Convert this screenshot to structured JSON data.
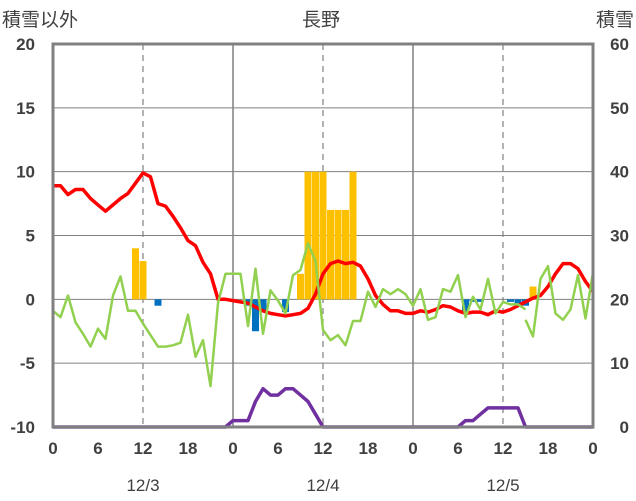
{
  "chart_data": {
    "type": "line",
    "title": "長野",
    "left_axis_label": "積雪以外",
    "right_axis_label": "積雪",
    "left_ylim": [
      -10,
      20
    ],
    "left_ticks": [
      "20",
      "15",
      "10",
      "5",
      "0",
      "-5",
      "-10"
    ],
    "right_ylim": [
      0,
      60
    ],
    "right_ticks": [
      "60",
      "50",
      "40",
      "30",
      "20",
      "10",
      "0"
    ],
    "xlim": [
      0,
      72
    ],
    "x_tick_values": [
      0,
      6,
      12,
      18,
      24,
      30,
      36,
      42,
      48,
      54,
      60,
      66,
      72
    ],
    "x_tick_labels": [
      "0",
      "6",
      "12",
      "18",
      "0",
      "6",
      "12",
      "18",
      "0",
      "6",
      "12",
      "18",
      "0"
    ],
    "day_labels": [
      {
        "x": 12,
        "text": "12/3"
      },
      {
        "x": 36,
        "text": "12/4"
      },
      {
        "x": 60,
        "text": "12/5"
      }
    ],
    "colors": {
      "temperature": "#ff0000",
      "wind": "#92d050",
      "snow_depth": "#7030a0",
      "snowfall": "#ffc000",
      "snow_decrease": "#0070c0",
      "grid": "#808080",
      "frame": "#808080"
    },
    "series": [
      {
        "key": "temperature",
        "axis": "left",
        "x": [
          0,
          1,
          2,
          3,
          4,
          5,
          6,
          7,
          8,
          9,
          10,
          11,
          12,
          13,
          14,
          15,
          16,
          17,
          18,
          19,
          20,
          21,
          22,
          23,
          24,
          25,
          26,
          27,
          28,
          29,
          30,
          31,
          32,
          33,
          34,
          35,
          36,
          37,
          38,
          39,
          40,
          41,
          42,
          43,
          44,
          45,
          46,
          47,
          48,
          49,
          50,
          51,
          52,
          53,
          54,
          55,
          56,
          57,
          58,
          59,
          60,
          61,
          62,
          63,
          64,
          65,
          66,
          67,
          68,
          69,
          70,
          71,
          72
        ],
        "values": [
          8.9,
          8.9,
          8.2,
          8.6,
          8.6,
          7.9,
          7.4,
          6.9,
          7.4,
          7.9,
          8.3,
          9.1,
          9.9,
          9.6,
          7.5,
          7.3,
          6.5,
          5.6,
          4.6,
          4.2,
          2.9,
          2.0,
          0.0,
          0.0,
          -0.1,
          -0.2,
          -0.3,
          -0.6,
          -0.9,
          -1.1,
          -1.2,
          -1.3,
          -1.2,
          -1.1,
          -0.7,
          0.4,
          2.0,
          2.8,
          3.0,
          2.8,
          2.9,
          2.6,
          1.6,
          0.3,
          -0.4,
          -0.9,
          -0.9,
          -1.1,
          -1.1,
          -0.9,
          -1.0,
          -0.8,
          -0.5,
          -0.6,
          -0.9,
          -1.1,
          -1.0,
          -1.0,
          -1.2,
          -0.9,
          -1.0,
          -0.8,
          -0.5,
          -0.2,
          0.1,
          0.3,
          1.0,
          2.0,
          2.8,
          2.8,
          2.4,
          1.4,
          0.6
        ]
      },
      {
        "key": "wind",
        "axis": "left",
        "segments": [
          {
            "x": [
              0,
              1,
              2,
              3,
              4,
              5,
              6,
              7,
              8,
              9,
              10,
              11,
              12,
              13,
              14,
              15,
              16,
              17,
              18,
              19,
              20,
              21,
              22,
              23,
              24,
              25,
              26,
              27,
              28,
              29,
              30,
              31,
              32,
              33,
              34,
              35,
              36,
              37,
              38,
              39,
              40,
              41,
              42,
              43,
              44,
              45,
              46,
              47,
              48,
              49,
              50,
              51,
              52,
              53,
              54,
              55,
              56,
              57,
              58,
              59,
              60,
              61,
              62,
              63
            ],
            "values": [
              -0.9,
              -1.4,
              0.3,
              -1.8,
              -2.7,
              -3.7,
              -2.3,
              -3.1,
              0.3,
              1.8,
              -0.9,
              -0.9,
              -1.9,
              -2.8,
              -3.7,
              -3.7,
              -3.6,
              -3.4,
              -1.2,
              -4.5,
              -3.2,
              -6.8,
              -0.3,
              2.0,
              2.0,
              2.0,
              -2.1,
              2.4,
              -2.7,
              0.7,
              -0.1,
              -1.1,
              1.9,
              2.3,
              4.4,
              3.0,
              -2.4,
              -3.2,
              -2.8,
              -3.6,
              -1.7,
              -1.7,
              0.6,
              -0.6,
              0.8,
              0.4,
              0.8,
              0.4,
              -0.5,
              0.8,
              -1.6,
              -1.4,
              0.8,
              0.6,
              1.9,
              -1.4,
              0.2,
              -0.8,
              1.6,
              -1.1,
              -0.2,
              -0.4,
              -0.4,
              -0.8
            ]
          },
          {
            "x": [
              63,
              64,
              65,
              66,
              67,
              68,
              69,
              70,
              71,
              72
            ],
            "values": [
              -1.6,
              -2.9,
              1.6,
              2.6,
              -1.1,
              -1.6,
              -0.8,
              1.9,
              -1.5,
              2.1
            ]
          }
        ]
      },
      {
        "key": "snow_depth",
        "axis": "right",
        "x": [
          0,
          1,
          2,
          3,
          4,
          5,
          6,
          7,
          8,
          9,
          10,
          11,
          12,
          13,
          14,
          15,
          16,
          17,
          18,
          19,
          20,
          21,
          22,
          23,
          24,
          25,
          26,
          27,
          28,
          29,
          30,
          31,
          32,
          33,
          34,
          35,
          36,
          37,
          38,
          39,
          40,
          41,
          42,
          43,
          44,
          45,
          46,
          47,
          48,
          49,
          50,
          51,
          52,
          53,
          54,
          55,
          56,
          57,
          58,
          59,
          60,
          61,
          62,
          63,
          64,
          65,
          66,
          67,
          68,
          69,
          70,
          71,
          72
        ],
        "values": [
          0,
          0,
          0,
          0,
          0,
          0,
          0,
          0,
          0,
          0,
          0,
          0,
          0,
          0,
          0,
          0,
          0,
          0,
          0,
          0,
          0,
          0,
          0,
          0,
          1,
          1,
          1,
          4,
          6,
          5,
          5,
          6,
          6,
          5,
          4,
          2,
          0,
          0,
          0,
          0,
          0,
          0,
          0,
          0,
          0,
          0,
          0,
          0,
          0,
          0,
          0,
          0,
          0,
          0,
          0,
          1,
          1,
          2,
          3,
          3,
          3,
          3,
          3,
          0,
          0,
          0,
          0,
          0,
          0,
          0,
          0,
          0,
          0
        ]
      }
    ],
    "bars": {
      "axis": "left",
      "snowfall": [
        {
          "x": 11,
          "value": 4
        },
        {
          "x": 12,
          "value": 3
        },
        {
          "x": 33,
          "value": 2
        },
        {
          "x": 34,
          "value": 10
        },
        {
          "x": 35,
          "value": 10
        },
        {
          "x": 36,
          "value": 10
        },
        {
          "x": 37,
          "value": 7
        },
        {
          "x": 38,
          "value": 7
        },
        {
          "x": 39,
          "value": 7
        },
        {
          "x": 40,
          "value": 10
        },
        {
          "x": 64,
          "value": 1
        }
      ],
      "snow_decrease": [
        {
          "x": 14,
          "value": -0.5
        },
        {
          "x": 26,
          "value": -0.5
        },
        {
          "x": 27,
          "value": -2.5
        },
        {
          "x": 28,
          "value": -1.0
        },
        {
          "x": 31,
          "value": -1.0
        },
        {
          "x": 55,
          "value": -1.0
        },
        {
          "x": 56,
          "value": -0.2
        },
        {
          "x": 57,
          "value": -0.2
        },
        {
          "x": 61,
          "value": -0.2
        },
        {
          "x": 62,
          "value": -0.5
        },
        {
          "x": 63,
          "value": -0.5
        }
      ]
    }
  }
}
